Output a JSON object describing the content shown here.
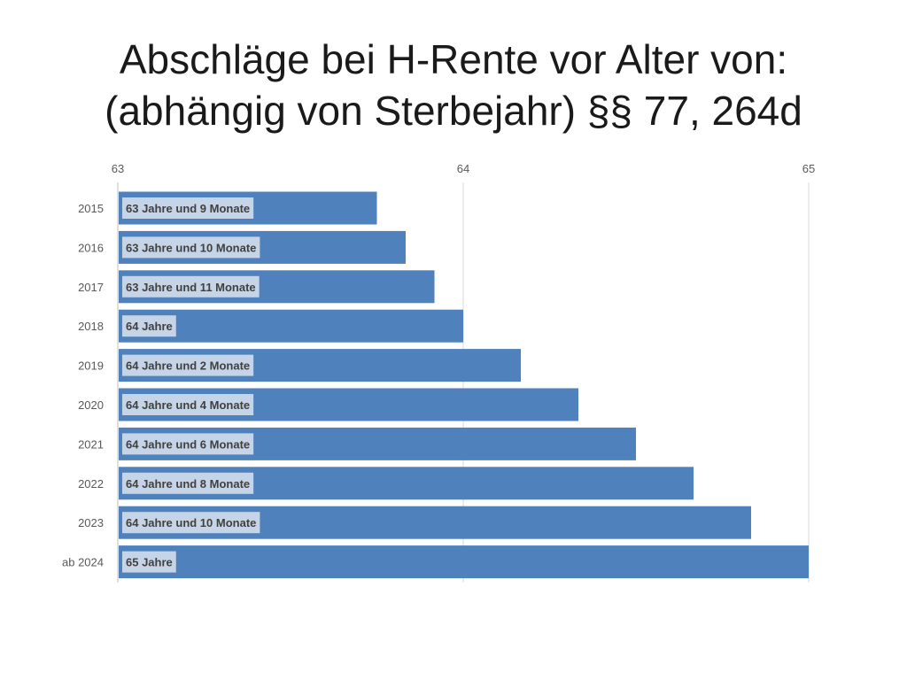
{
  "slide": {
    "title_line1": "Abschläge bei H-Rente vor Alter von:",
    "title_line2": "(abhängig von Sterbejahr) §§ 77, 264d"
  },
  "colors": {
    "bar": "#4f81bd",
    "label_box": "#c6d4e8",
    "gridline": "#d9d9d9"
  },
  "chart_data": {
    "type": "bar",
    "orientation": "horizontal",
    "title": "",
    "xlabel": "",
    "ylabel": "",
    "xlim": [
      63,
      65
    ],
    "x_ticks": [
      "63",
      "64",
      "65"
    ],
    "axis_position": "top",
    "grid": true,
    "categories": [
      "2015",
      "2016",
      "2017",
      "2018",
      "2019",
      "2020",
      "2021",
      "2022",
      "2023",
      "ab 2024"
    ],
    "values": [
      63.75,
      63.8333,
      63.9167,
      64.0,
      64.1667,
      64.3333,
      64.5,
      64.6667,
      64.8333,
      65.0
    ],
    "data_labels": [
      "63 Jahre und 9 Monate",
      "63 Jahre und 10 Monate",
      "63 Jahre und 11 Monate",
      "64 Jahre",
      "64 Jahre und 2 Monate",
      "64 Jahre und 4 Monate",
      "64 Jahre und 6 Monate",
      "64 Jahre und 8 Monate",
      "64 Jahre und 10 Monate",
      "65 Jahre"
    ]
  }
}
